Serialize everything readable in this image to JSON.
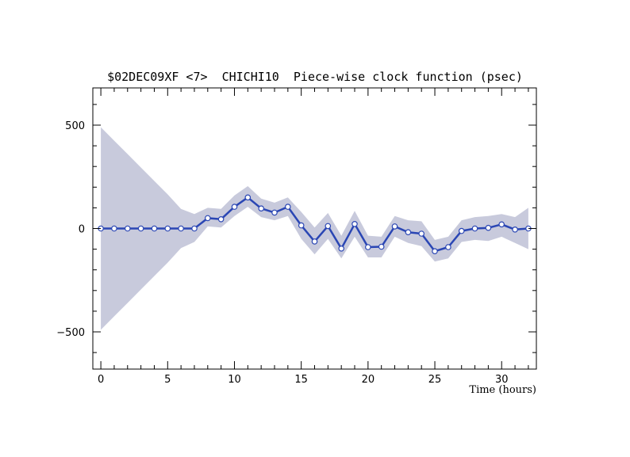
{
  "chart_data": {
    "type": "line",
    "title": "$02DEC09XF <7>  CHICHI10  Piece-wise clock function (psec)",
    "xlabel": "Time (hours)",
    "ylabel": "",
    "xlim": [
      -0.6,
      32.6
    ],
    "ylim": [
      -680,
      680
    ],
    "x_ticks": [
      0,
      5,
      10,
      15,
      20,
      25,
      30
    ],
    "y_ticks": [
      -500,
      0,
      500
    ],
    "y_tick_labels": [
      "−500",
      "0",
      "500"
    ],
    "grid": false,
    "colors": {
      "line": "#2a46b4",
      "band": "#c8cadc",
      "marker_fill": "#ffffff"
    },
    "series": [
      {
        "x": [
          0,
          1,
          2,
          3,
          4,
          5,
          6,
          7,
          8,
          9,
          10,
          11,
          12,
          13,
          14,
          15,
          16,
          17,
          18,
          19,
          20,
          21,
          22,
          23,
          24,
          25,
          26,
          27,
          28,
          29,
          30,
          31,
          32
        ],
        "values": [
          0,
          0,
          0,
          0,
          0,
          0,
          0,
          0,
          50,
          45,
          105,
          150,
          97,
          77,
          105,
          15,
          -63,
          12,
          -97,
          22,
          -90,
          -88,
          10,
          -18,
          -25,
          -110,
          -90,
          -12,
          0,
          3,
          20,
          -5,
          0
        ],
        "upper": [
          490,
          425,
          360,
          295,
          230,
          165,
          95,
          70,
          100,
          95,
          160,
          205,
          145,
          125,
          150,
          80,
          5,
          75,
          -35,
          85,
          -35,
          -40,
          60,
          40,
          35,
          -55,
          -40,
          40,
          55,
          60,
          70,
          55,
          100
        ],
        "lower": [
          -490,
          -425,
          -360,
          -295,
          -230,
          -165,
          -95,
          -65,
          10,
          5,
          60,
          105,
          55,
          40,
          60,
          -50,
          -125,
          -50,
          -145,
          -40,
          -140,
          -140,
          -40,
          -70,
          -85,
          -160,
          -145,
          -65,
          -55,
          -60,
          -40,
          -70,
          -100
        ]
      }
    ]
  }
}
